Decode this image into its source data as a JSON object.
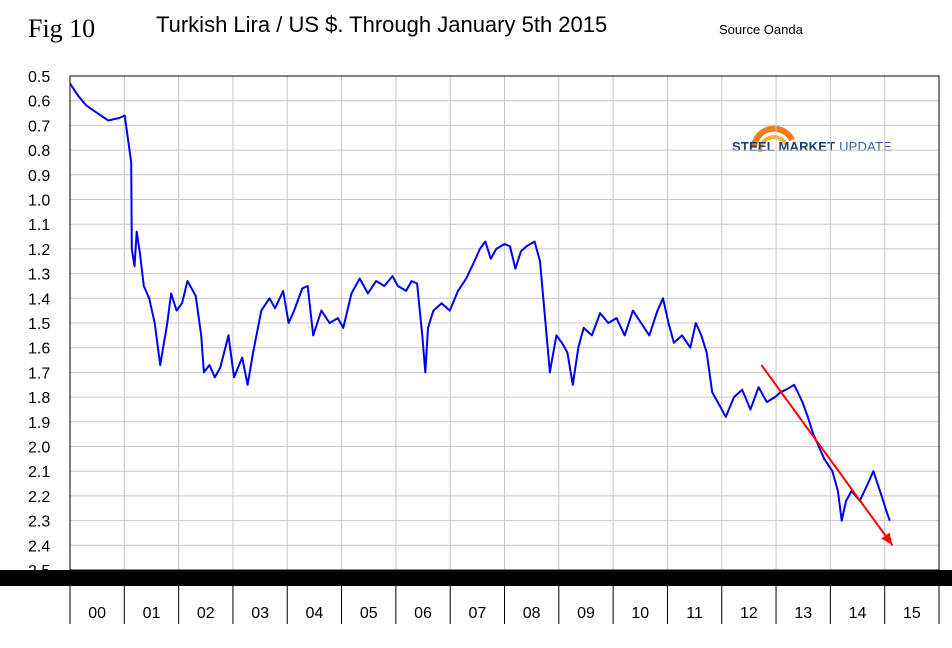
{
  "figure_label": "Fig 10",
  "source": "Source Oanda",
  "logo": {
    "name_bold": "STEEL MARKET",
    "name_light": " UPDATE",
    "ring_color_outer": "#f47a1f",
    "ring_color_inner": "#f9b233"
  },
  "chart_data": {
    "type": "line",
    "title": "Turkish Lira / US $. Through January 5th 2015",
    "xlabel": "",
    "ylabel": "",
    "y_inverted": true,
    "ylim": [
      2.5,
      0.5
    ],
    "yticks": [
      "0.5",
      "0.6",
      "0.7",
      "0.8",
      "0.9",
      "1.0",
      "1.1",
      "1.2",
      "1.3",
      "1.4",
      "1.5",
      "1.6",
      "1.7",
      "1.8",
      "1.9",
      "2.0",
      "2.1",
      "2.2",
      "2.3",
      "2.4",
      "2.5"
    ],
    "xticks": [
      "00",
      "01",
      "02",
      "03",
      "04",
      "05",
      "06",
      "07",
      "08",
      "09",
      "10",
      "11",
      "12",
      "13",
      "14",
      "15"
    ],
    "xlim": [
      2000,
      2015.9
    ],
    "grid": true,
    "series": [
      {
        "color": "#0000ee",
        "x": [
          2000.0,
          2000.15,
          2000.3,
          2000.5,
          2000.7,
          2000.9,
          2001.0,
          2001.12,
          2001.13,
          2001.18,
          2001.22,
          2001.28,
          2001.35,
          2001.45,
          2001.55,
          2001.65,
          2001.78,
          2001.85,
          2001.95,
          2002.05,
          2002.15,
          2002.3,
          2002.4,
          2002.45,
          2002.55,
          2002.65,
          2002.75,
          2002.9,
          2003.0,
          2003.15,
          2003.25,
          2003.35,
          2003.5,
          2003.65,
          2003.75,
          2003.9,
          2004.0,
          2004.1,
          2004.25,
          2004.35,
          2004.45,
          2004.6,
          2004.75,
          2004.9,
          2005.0,
          2005.15,
          2005.3,
          2005.45,
          2005.6,
          2005.75,
          2005.9,
          2006.0,
          2006.15,
          2006.25,
          2006.35,
          2006.45,
          2006.5,
          2006.55,
          2006.65,
          2006.8,
          2006.95,
          2007.1,
          2007.25,
          2007.4,
          2007.5,
          2007.6,
          2007.7,
          2007.8,
          2007.95,
          2008.05,
          2008.15,
          2008.25,
          2008.35,
          2008.5,
          2008.6,
          2008.72,
          2008.78,
          2008.82,
          2008.9,
          2009.0,
          2009.1,
          2009.2,
          2009.3,
          2009.4,
          2009.55,
          2009.7,
          2009.85,
          2010.0,
          2010.15,
          2010.3,
          2010.45,
          2010.6,
          2010.75,
          2010.85,
          2010.95,
          2011.05,
          2011.2,
          2011.35,
          2011.45,
          2011.55,
          2011.65,
          2011.75,
          2011.85,
          2012.0,
          2012.15,
          2012.3,
          2012.45,
          2012.6,
          2012.75,
          2012.9,
          2013.0,
          2013.1,
          2013.25,
          2013.4,
          2013.5,
          2013.6,
          2013.7,
          2013.8,
          2013.95,
          2014.05,
          2014.12,
          2014.2,
          2014.3,
          2014.45,
          2014.6,
          2014.7,
          2014.85,
          2014.95,
          2015.0
        ],
        "y": [
          0.53,
          0.58,
          0.62,
          0.65,
          0.68,
          0.67,
          0.66,
          0.85,
          1.2,
          1.27,
          1.13,
          1.22,
          1.35,
          1.4,
          1.5,
          1.67,
          1.5,
          1.38,
          1.45,
          1.42,
          1.33,
          1.39,
          1.55,
          1.7,
          1.67,
          1.72,
          1.68,
          1.55,
          1.72,
          1.64,
          1.75,
          1.62,
          1.45,
          1.4,
          1.44,
          1.37,
          1.5,
          1.45,
          1.36,
          1.35,
          1.55,
          1.45,
          1.5,
          1.48,
          1.52,
          1.38,
          1.32,
          1.38,
          1.33,
          1.35,
          1.31,
          1.35,
          1.37,
          1.33,
          1.34,
          1.56,
          1.7,
          1.52,
          1.45,
          1.42,
          1.45,
          1.37,
          1.32,
          1.25,
          1.2,
          1.17,
          1.24,
          1.2,
          1.18,
          1.19,
          1.28,
          1.21,
          1.19,
          1.17,
          1.25,
          1.55,
          1.7,
          1.65,
          1.55,
          1.58,
          1.62,
          1.75,
          1.6,
          1.52,
          1.55,
          1.46,
          1.5,
          1.48,
          1.55,
          1.45,
          1.5,
          1.55,
          1.45,
          1.4,
          1.5,
          1.58,
          1.55,
          1.6,
          1.5,
          1.55,
          1.62,
          1.78,
          1.82,
          1.88,
          1.8,
          1.77,
          1.85,
          1.76,
          1.82,
          1.8,
          1.78,
          1.77,
          1.75,
          1.82,
          1.88,
          1.95,
          2.0,
          2.05,
          2.1,
          2.18,
          2.3,
          2.22,
          2.18,
          2.22,
          2.15,
          2.1,
          2.2,
          2.27,
          2.3
        ]
      }
    ],
    "trend_arrow": {
      "color": "#ff0000",
      "x": [
        2012.65,
        2015.05
      ],
      "y": [
        1.67,
        2.4
      ]
    }
  }
}
